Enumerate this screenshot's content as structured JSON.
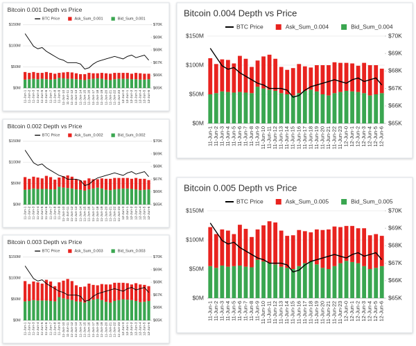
{
  "chart_data": [
    {
      "type": "bar",
      "stacked": true,
      "title": "Bitcoin 0.001 Depth vs Price",
      "categories": [
        "11-Jun-1",
        "11-Jun-2",
        "11-Jun-3",
        "11-Jun-4",
        "11-Jun-5",
        "11-Jun-6",
        "11-Jun-7",
        "11-Jun-8",
        "11-Jun-9",
        "11-Jun-10",
        "11-Jun-11",
        "11-Jun-12",
        "11-Jun-13",
        "11-Jun-14",
        "11-Jun-15",
        "11-Jun-16",
        "11-Jun-17",
        "11-Jun-18",
        "11-Jun-19",
        "11-Jun-20",
        "11-Jun-21",
        "11-Jun-22",
        "11-Jun-23",
        "12-Jun-0",
        "12-Jun-1",
        "12-Jun-2",
        "12-Jun-3",
        "12-Jun-4",
        "12-Jun-5",
        "12-Jun-6"
      ],
      "series": [
        {
          "name": "BTC Price",
          "color": "#000000",
          "axis": "y2",
          "type": "line",
          "values": [
            69.3,
            68.8,
            68.3,
            68.1,
            68.2,
            67.9,
            67.7,
            67.5,
            67.3,
            67.2,
            67.0,
            67.0,
            67.0,
            66.9,
            66.5,
            66.6,
            66.9,
            67.1,
            67.2,
            67.3,
            67.4,
            67.5,
            67.4,
            67.3,
            67.5,
            67.6,
            67.4,
            67.5,
            67.6,
            67.2
          ]
        },
        {
          "name": "Ask_Sum_0.001",
          "color": "#e8231f",
          "values": [
            18,
            15,
            16,
            15,
            14,
            17,
            16,
            13,
            12,
            14,
            16,
            15,
            14,
            13,
            14,
            15,
            13,
            12,
            14,
            15,
            15,
            15,
            14,
            14,
            14,
            13,
            15,
            15,
            14,
            13
          ]
        },
        {
          "name": "Bid_Sum_0.001",
          "color": "#3aa650",
          "values": [
            20,
            21,
            22,
            21,
            22,
            21,
            20,
            21,
            24,
            23,
            22,
            22,
            21,
            20,
            19,
            21,
            22,
            23,
            22,
            20,
            19,
            21,
            22,
            22,
            22,
            21,
            21,
            20,
            20,
            21
          ]
        }
      ],
      "ylim": [
        0,
        150
      ],
      "yticks": [
        {
          "value": 0,
          "label": "$0M"
        },
        {
          "value": 50,
          "label": "$50M"
        },
        {
          "value": 100,
          "label": "$100M"
        },
        {
          "value": 150,
          "label": "$150M"
        }
      ],
      "y2lim": [
        65,
        70
      ],
      "y2ticks": [
        {
          "value": 65,
          "label": "$65K"
        },
        {
          "value": 66,
          "label": "$66K"
        },
        {
          "value": 67,
          "label": "$67K"
        },
        {
          "value": 68,
          "label": "$68K"
        },
        {
          "value": 69,
          "label": "$69K"
        },
        {
          "value": 70,
          "label": "$70K"
        }
      ]
    },
    {
      "type": "bar",
      "stacked": true,
      "title": "Bitcoin 0.002 Depth vs Price",
      "categories": [
        "11-Jun-1",
        "11-Jun-2",
        "11-Jun-3",
        "11-Jun-4",
        "11-Jun-5",
        "11-Jun-6",
        "11-Jun-7",
        "11-Jun-8",
        "11-Jun-9",
        "11-Jun-10",
        "11-Jun-11",
        "11-Jun-12",
        "11-Jun-13",
        "11-Jun-14",
        "11-Jun-15",
        "11-Jun-16",
        "11-Jun-17",
        "11-Jun-18",
        "11-Jun-19",
        "11-Jun-20",
        "11-Jun-21",
        "11-Jun-22",
        "11-Jun-23",
        "12-Jun-0",
        "12-Jun-1",
        "12-Jun-2",
        "12-Jun-3",
        "12-Jun-4",
        "12-Jun-5",
        "12-Jun-6"
      ],
      "series": [
        {
          "name": "BTC Price",
          "color": "#000000",
          "axis": "y2",
          "type": "line",
          "values": [
            69.3,
            68.8,
            68.3,
            68.1,
            68.2,
            67.9,
            67.7,
            67.5,
            67.3,
            67.2,
            67.0,
            67.0,
            67.0,
            66.9,
            66.5,
            66.6,
            66.9,
            67.1,
            67.2,
            67.3,
            67.4,
            67.5,
            67.4,
            67.3,
            67.5,
            67.6,
            67.4,
            67.5,
            67.6,
            67.2
          ]
        },
        {
          "name": "Ask_Sum_0.002",
          "color": "#e8231f",
          "values": [
            30,
            25,
            28,
            27,
            25,
            31,
            29,
            23,
            22,
            27,
            30,
            28,
            24,
            22,
            24,
            26,
            22,
            20,
            24,
            26,
            27,
            27,
            26,
            25,
            25,
            24,
            27,
            27,
            26,
            22
          ]
        },
        {
          "name": "Bid_Sum_0.002",
          "color": "#3aa650",
          "values": [
            35,
            36,
            38,
            37,
            37,
            37,
            36,
            36,
            42,
            40,
            39,
            38,
            36,
            35,
            33,
            36,
            38,
            40,
            38,
            35,
            34,
            36,
            37,
            38,
            38,
            37,
            36,
            34,
            35,
            36
          ]
        }
      ],
      "ylim": [
        0,
        150
      ],
      "yticks": [
        {
          "value": 0,
          "label": "$0M"
        },
        {
          "value": 50,
          "label": "$50M"
        },
        {
          "value": 100,
          "label": "$100M"
        },
        {
          "value": 150,
          "label": "$150M"
        }
      ],
      "y2lim": [
        65,
        70
      ],
      "y2ticks": [
        {
          "value": 65,
          "label": "$65K"
        },
        {
          "value": 66,
          "label": "$66K"
        },
        {
          "value": 67,
          "label": "$67K"
        },
        {
          "value": 68,
          "label": "$68K"
        },
        {
          "value": 69,
          "label": "$69K"
        },
        {
          "value": 70,
          "label": "$70K"
        }
      ]
    },
    {
      "type": "bar",
      "stacked": true,
      "title": "Bitcoin 0.003 Depth vs Price",
      "categories": [
        "11-Jun-1",
        "11-Jun-2",
        "11-Jun-3",
        "11-Jun-4",
        "11-Jun-5",
        "11-Jun-6",
        "11-Jun-7",
        "11-Jun-8",
        "11-Jun-9",
        "11-Jun-10",
        "11-Jun-11",
        "11-Jun-12",
        "11-Jun-13",
        "11-Jun-14",
        "11-Jun-15",
        "11-Jun-16",
        "11-Jun-17",
        "11-Jun-18",
        "11-Jun-19",
        "11-Jun-20",
        "11-Jun-21",
        "11-Jun-22",
        "11-Jun-23",
        "12-Jun-0",
        "12-Jun-1",
        "12-Jun-2",
        "12-Jun-3",
        "12-Jun-4",
        "12-Jun-5",
        "12-Jun-6"
      ],
      "series": [
        {
          "name": "BTC Price",
          "color": "#000000",
          "axis": "y2",
          "type": "line",
          "values": [
            69.3,
            68.8,
            68.3,
            68.1,
            68.2,
            67.9,
            67.7,
            67.5,
            67.3,
            67.2,
            67.0,
            67.0,
            67.0,
            66.9,
            66.5,
            66.6,
            66.9,
            67.1,
            67.2,
            67.3,
            67.4,
            67.5,
            67.4,
            67.3,
            67.5,
            67.6,
            67.4,
            67.5,
            67.6,
            67.2
          ]
        },
        {
          "name": "Ask_Sum_0.003",
          "color": "#e8231f",
          "values": [
            48,
            40,
            44,
            43,
            40,
            49,
            46,
            36,
            35,
            42,
            48,
            45,
            38,
            35,
            38,
            41,
            35,
            32,
            38,
            41,
            43,
            43,
            41,
            39,
            39,
            37,
            42,
            42,
            40,
            35
          ]
        },
        {
          "name": "Bid_Sum_0.003",
          "color": "#3aa650",
          "values": [
            45,
            46,
            48,
            47,
            47,
            47,
            46,
            45,
            55,
            52,
            50,
            48,
            45,
            44,
            42,
            46,
            49,
            51,
            48,
            44,
            42,
            46,
            48,
            50,
            49,
            48,
            46,
            43,
            44,
            46
          ]
        }
      ],
      "ylim": [
        0,
        150
      ],
      "yticks": [
        {
          "value": 0,
          "label": "$0M"
        },
        {
          "value": 50,
          "label": "$50M"
        },
        {
          "value": 100,
          "label": "$100M"
        },
        {
          "value": 150,
          "label": "$150M"
        }
      ],
      "y2lim": [
        65,
        70
      ],
      "y2ticks": [
        {
          "value": 65,
          "label": "$65K"
        },
        {
          "value": 66,
          "label": "$66K"
        },
        {
          "value": 67,
          "label": "$67K"
        },
        {
          "value": 68,
          "label": "$68K"
        },
        {
          "value": 69,
          "label": "$69K"
        },
        {
          "value": 70,
          "label": "$70K"
        }
      ]
    },
    {
      "type": "bar",
      "stacked": true,
      "title": "Bitcoin 0.004 Depth vs Price",
      "categories": [
        "11-Jun-1",
        "11-Jun-2",
        "11-Jun-3",
        "11-Jun-4",
        "11-Jun-5",
        "11-Jun-6",
        "11-Jun-7",
        "11-Jun-8",
        "11-Jun-9",
        "11-Jun-10",
        "11-Jun-11",
        "11-Jun-12",
        "11-Jun-13",
        "11-Jun-14",
        "11-Jun-15",
        "11-Jun-16",
        "11-Jun-17",
        "11-Jun-18",
        "11-Jun-19",
        "11-Jun-20",
        "11-Jun-21",
        "11-Jun-22",
        "11-Jun-23",
        "12-Jun-0",
        "12-Jun-1",
        "12-Jun-2",
        "12-Jun-3",
        "12-Jun-4",
        "12-Jun-5",
        "12-Jun-6"
      ],
      "series": [
        {
          "name": "BTC Price",
          "color": "#000000",
          "axis": "y2",
          "type": "line",
          "values": [
            69.3,
            68.8,
            68.3,
            68.1,
            68.2,
            67.9,
            67.7,
            67.5,
            67.3,
            67.2,
            67.0,
            67.0,
            67.0,
            66.9,
            66.5,
            66.6,
            66.9,
            67.1,
            67.2,
            67.3,
            67.4,
            67.5,
            67.4,
            67.3,
            67.5,
            67.6,
            67.4,
            67.5,
            67.6,
            67.2
          ]
        },
        {
          "name": "Ask_Sum_0.004",
          "color": "#e8231f",
          "values": [
            62,
            50,
            55,
            55,
            50,
            62,
            58,
            45,
            45,
            55,
            60,
            55,
            45,
            42,
            47,
            50,
            42,
            38,
            45,
            50,
            52,
            53,
            50,
            48,
            48,
            45,
            52,
            52,
            50,
            42
          ]
        },
        {
          "name": "Bid_Sum_0.004",
          "color": "#3aa650",
          "values": [
            50,
            52,
            55,
            54,
            53,
            54,
            53,
            52,
            63,
            60,
            58,
            56,
            52,
            50,
            48,
            52,
            56,
            58,
            55,
            50,
            48,
            52,
            54,
            56,
            55,
            54,
            52,
            48,
            50,
            52
          ]
        }
      ],
      "ylim": [
        0,
        150
      ],
      "yticks": [
        {
          "value": 0,
          "label": "$0M"
        },
        {
          "value": 50,
          "label": "$50M"
        },
        {
          "value": 100,
          "label": "$100M"
        },
        {
          "value": 150,
          "label": "$150M"
        }
      ],
      "y2lim": [
        65,
        70
      ],
      "y2ticks": [
        {
          "value": 65,
          "label": "$65K"
        },
        {
          "value": 66,
          "label": "$66K"
        },
        {
          "value": 67,
          "label": "$67K"
        },
        {
          "value": 68,
          "label": "$68K"
        },
        {
          "value": 69,
          "label": "$69K"
        },
        {
          "value": 70,
          "label": "$70K"
        }
      ]
    },
    {
      "type": "bar",
      "stacked": true,
      "title": "Bitcoin 0.005 Depth vs Price",
      "categories": [
        "11-Jun-1",
        "11-Jun-2",
        "11-Jun-3",
        "11-Jun-4",
        "11-Jun-5",
        "11-Jun-6",
        "11-Jun-7",
        "11-Jun-8",
        "11-Jun-9",
        "11-Jun-10",
        "11-Jun-11",
        "11-Jun-12",
        "11-Jun-13",
        "11-Jun-14",
        "11-Jun-15",
        "11-Jun-16",
        "11-Jun-17",
        "11-Jun-18",
        "11-Jun-19",
        "11-Jun-20",
        "11-Jun-21",
        "11-Jun-22",
        "11-Jun-23",
        "12-Jun-0",
        "12-Jun-1",
        "12-Jun-2",
        "12-Jun-3",
        "12-Jun-4",
        "12-Jun-5",
        "12-Jun-6"
      ],
      "series": [
        {
          "name": "BTC Price",
          "color": "#000000",
          "axis": "y2",
          "type": "line",
          "values": [
            69.3,
            68.8,
            68.3,
            68.1,
            68.2,
            67.9,
            67.7,
            67.5,
            67.3,
            67.2,
            67.0,
            67.0,
            67.0,
            66.9,
            66.5,
            66.6,
            66.9,
            67.1,
            67.2,
            67.3,
            67.4,
            67.5,
            67.4,
            67.3,
            67.5,
            67.6,
            67.4,
            67.5,
            67.6,
            67.2
          ]
        },
        {
          "name": "Ask_Sum_0.005",
          "color": "#e8231f",
          "values": [
            67,
            58,
            62,
            62,
            55,
            70,
            65,
            52,
            52,
            62,
            72,
            72,
            62,
            55,
            58,
            62,
            55,
            50,
            60,
            65,
            68,
            68,
            62,
            60,
            62,
            60,
            65,
            58,
            58,
            52
          ]
        },
        {
          "name": "Bid_Sum_0.005",
          "color": "#3aa650",
          "values": [
            55,
            52,
            56,
            54,
            55,
            56,
            54,
            53,
            66,
            63,
            60,
            58,
            54,
            52,
            50,
            55,
            60,
            63,
            58,
            52,
            50,
            55,
            60,
            64,
            62,
            60,
            55,
            50,
            52,
            55
          ]
        }
      ],
      "ylim": [
        0,
        150
      ],
      "yticks": [
        {
          "value": 0,
          "label": "$0M"
        },
        {
          "value": 50,
          "label": "$50M"
        },
        {
          "value": 100,
          "label": "$100M"
        },
        {
          "value": 150,
          "label": "$150M"
        }
      ],
      "y2lim": [
        65,
        70
      ],
      "y2ticks": [
        {
          "value": 65,
          "label": "$65K"
        },
        {
          "value": 66,
          "label": "$66K"
        },
        {
          "value": 67,
          "label": "$67K"
        },
        {
          "value": 68,
          "label": "$68K"
        },
        {
          "value": 69,
          "label": "$69K"
        },
        {
          "value": 70,
          "label": "$70K"
        }
      ]
    }
  ]
}
